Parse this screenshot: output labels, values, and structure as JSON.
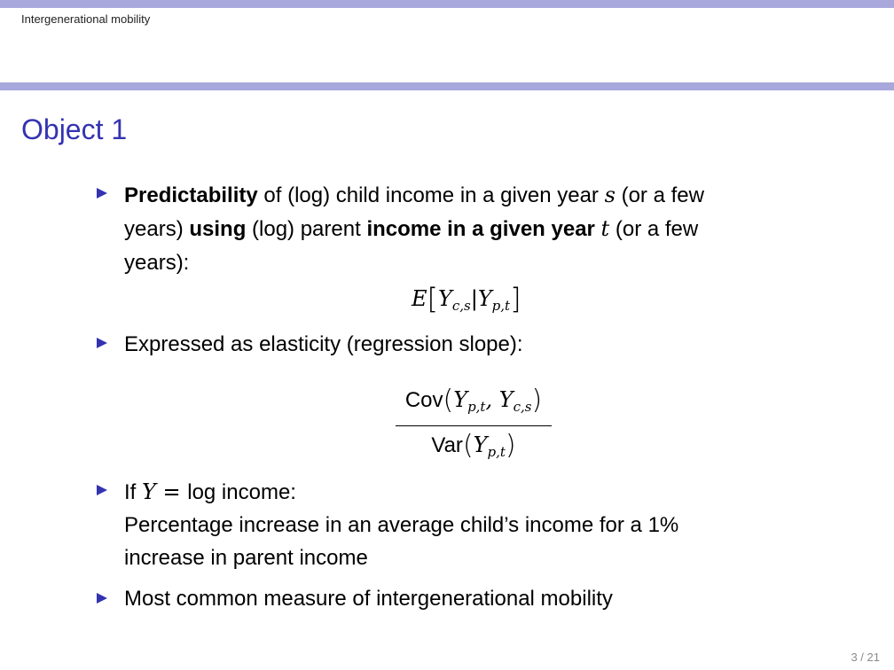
{
  "header": {
    "section": "Intergenerational mobility"
  },
  "slide": {
    "title": "Object 1"
  },
  "bullets": [
    {
      "line1": {
        "b1": "Predictability",
        "t1": " of (log) child income in a given year ",
        "v1": "s",
        "t2": " (or a few"
      },
      "line2": {
        "t1": "years) ",
        "b1": "using",
        "t2": " (log) parent ",
        "b2": "income in a given year",
        "t3": " ",
        "v1": "t",
        "t4": " (or a few"
      },
      "line3": "years):",
      "equation": {
        "E": "E",
        "Y1": "Y",
        "sub1": "c,s",
        "bar": "|",
        "Y2": "Y",
        "sub2": "p,t"
      }
    },
    {
      "line1": "Expressed as elasticity (regression slope):",
      "fraction": {
        "num_cov": "Cov",
        "num_Y1": "Y",
        "num_sub1": "p,t",
        "num_comma": ", ",
        "num_Y2": "Y",
        "num_sub2": "c,s",
        "den_var": "Var",
        "den_Y": "Y",
        "den_sub": "p,t"
      }
    },
    {
      "line1_pre": "If ",
      "line1_Y": "Y",
      "line1_eq": " = ",
      "line1_post": "log income:",
      "line2": "Percentage increase in an average child’s income for a 1%",
      "line3": "increase in parent income"
    },
    {
      "line1": "Most common measure of intergenerational mobility"
    }
  ],
  "footer": {
    "page": "3 / 21"
  },
  "colors": {
    "bar": "#a8a8dc",
    "title": "#3333b2",
    "bullet": "#3333b2"
  }
}
